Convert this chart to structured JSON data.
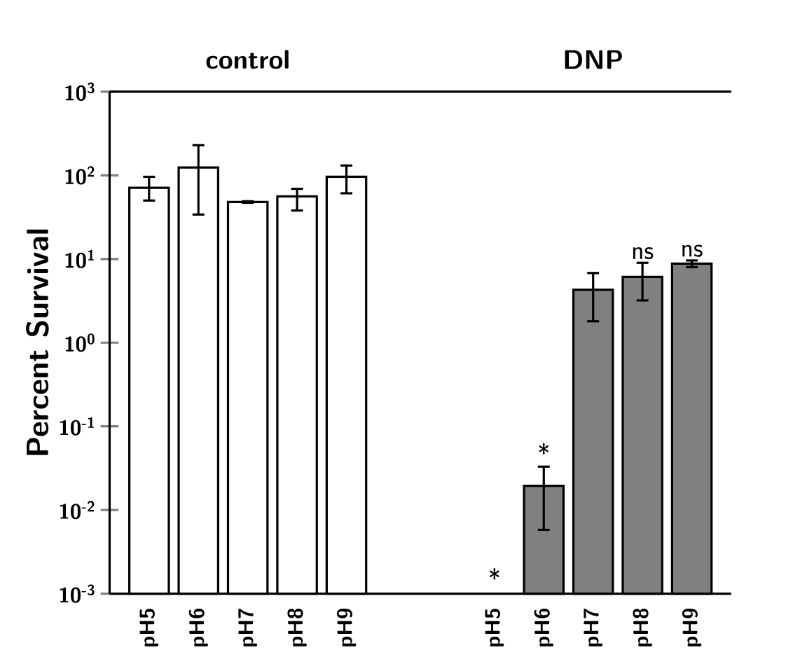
{
  "chart_data": {
    "type": "bar",
    "ylabel": "Percent Survival",
    "log": "y",
    "annotations": [
      "control",
      "DNP"
    ],
    "categories": [
      "pH5",
      "pH6",
      "pH7",
      "pH8",
      "pH9",
      null,
      null,
      "pH5",
      "pH6",
      "pH7",
      "pH8",
      "pH9"
    ],
    "series": [
      {
        "color": "#ffffff",
        "values": [
          71,
          124,
          48,
          56,
          96,
          null,
          null,
          null,
          null,
          null,
          null,
          null
        ],
        "errors": [
          [
            50,
            96
          ],
          [
            34,
            229
          ],
          [
            47,
            49
          ],
          [
            38,
            69
          ],
          [
            61,
            131
          ],
          null,
          null,
          null,
          null,
          null,
          null,
          null
        ]
      },
      {
        "color": "#808080",
        "values": [
          null,
          null,
          null,
          null,
          null,
          null,
          null,
          null,
          0.0195,
          4.3,
          6.1,
          8.8
        ],
        "errors": [
          null,
          null,
          null,
          null,
          null,
          null,
          null,
          null,
          [
            0.0058,
            0.033
          ],
          [
            1.8,
            6.8
          ],
          [
            3.2,
            9.0
          ],
          [
            8.0,
            9.6
          ]
        ],
        "value_labels": [
          null,
          null,
          null,
          null,
          null,
          null,
          null,
          "*",
          "*",
          null,
          "ns",
          "ns"
        ]
      }
    ],
    "ylim": [
      0.001,
      1000
    ],
    "yticks": [
      {
        "value": 0.001,
        "label": "10$^{-3}$"
      },
      {
        "value": 0.01,
        "label": "10$^{-2}$"
      },
      {
        "value": 0.1,
        "label": "10$^{-1}$"
      },
      {
        "value": 1,
        "label": "10$^{0}$"
      },
      {
        "value": 10,
        "label": "10$^{1}$"
      },
      {
        "value": 100,
        "label": "10$^{2}$"
      },
      {
        "value": 1000,
        "label": "10$^{3}$"
      }
    ],
    "grid": false
  }
}
